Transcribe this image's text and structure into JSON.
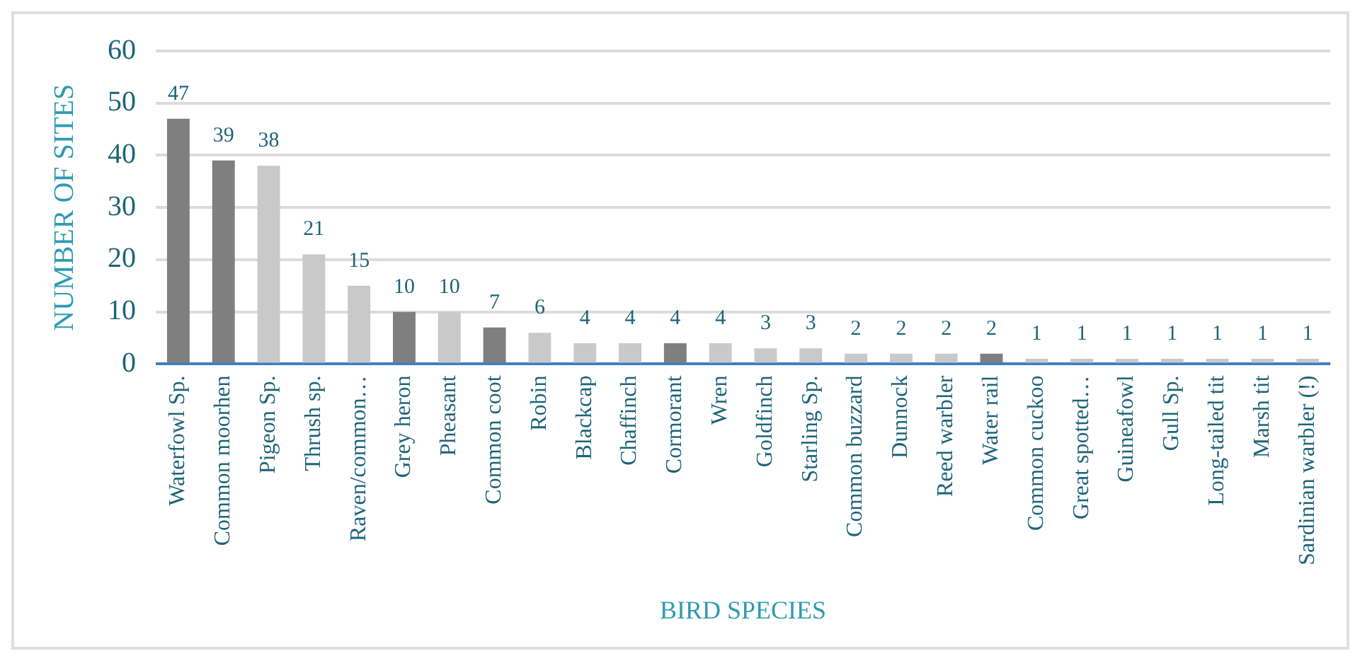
{
  "chart_data": {
    "type": "bar",
    "xlabel": "BIRD SPECIES",
    "ylabel": "NUMBER OF SITES",
    "categories": [
      "Waterfowl Sp.",
      "Common moorhen",
      "Pigeon Sp.",
      "Thrush sp.",
      "Raven/common…",
      "Grey heron",
      "Pheasant",
      "Common coot",
      "Robin",
      "Blackcap",
      "Chaffinch",
      "Cormorant",
      "Wren",
      "Goldfinch",
      "Starling Sp.",
      "Common buzzard",
      "Dunnock",
      "Reed warbler",
      "Water rail",
      "Common cuckoo",
      "Great spotted…",
      "Guineafowl",
      "Gull Sp.",
      "Long-tailed tit",
      "Marsh tit",
      "Sardinian warbler (!)"
    ],
    "values": [
      47,
      39,
      38,
      21,
      15,
      10,
      10,
      7,
      6,
      4,
      4,
      4,
      4,
      3,
      3,
      2,
      2,
      2,
      2,
      1,
      1,
      1,
      1,
      1,
      1,
      1
    ],
    "colors": [
      "#7f7f7f",
      "#7f7f7f",
      "#c9c9c9",
      "#c9c9c9",
      "#c9c9c9",
      "#7f7f7f",
      "#c9c9c9",
      "#7f7f7f",
      "#c9c9c9",
      "#c9c9c9",
      "#c9c9c9",
      "#7f7f7f",
      "#c9c9c9",
      "#c9c9c9",
      "#c9c9c9",
      "#c9c9c9",
      "#c9c9c9",
      "#c9c9c9",
      "#7f7f7f",
      "#c9c9c9",
      "#c9c9c9",
      "#c9c9c9",
      "#c9c9c9",
      "#c9c9c9",
      "#c9c9c9",
      "#c9c9c9"
    ],
    "ylim": [
      0,
      60
    ],
    "yticks": [
      0,
      10,
      20,
      30,
      40,
      50,
      60
    ],
    "grid": "y",
    "data_labels": true
  }
}
